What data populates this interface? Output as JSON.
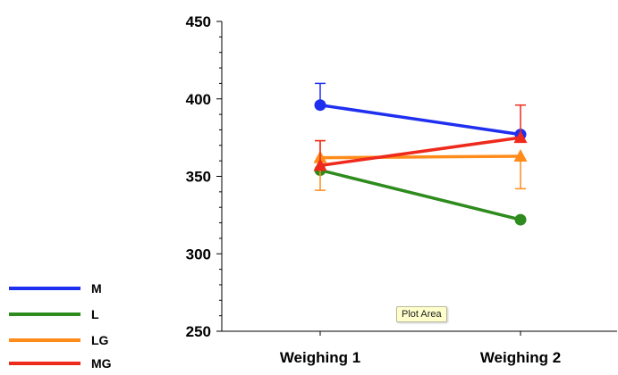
{
  "chart_data": {
    "type": "line",
    "title": "",
    "xlabel": "",
    "ylabel": "",
    "categories": [
      "Weighing 1",
      "Weighing 2"
    ],
    "ylim": [
      250,
      450
    ],
    "yticks": [
      "450",
      "400",
      "350",
      "300",
      "250"
    ],
    "grid": false,
    "legend_position": "bottom-left",
    "series": [
      {
        "name": "M",
        "color": "#1f2ff0",
        "marker": "circle",
        "values": [
          396,
          377
        ],
        "err_plus": [
          14,
          0
        ]
      },
      {
        "name": "L",
        "color": "#2e8b1e",
        "marker": "circle",
        "values": [
          354,
          322
        ],
        "err_plus": [
          0,
          0
        ]
      },
      {
        "name": "LG",
        "color": "#ff8c1a",
        "marker": "triangle",
        "values": [
          362,
          363
        ],
        "err_plus": [
          11,
          0
        ],
        "err_minus": [
          21,
          21
        ]
      },
      {
        "name": "MG",
        "color": "#ee2a1c",
        "marker": "triangle",
        "values": [
          357,
          375
        ],
        "err_plus": [
          16,
          21
        ]
      }
    ]
  },
  "tooltip": "Plot Area"
}
